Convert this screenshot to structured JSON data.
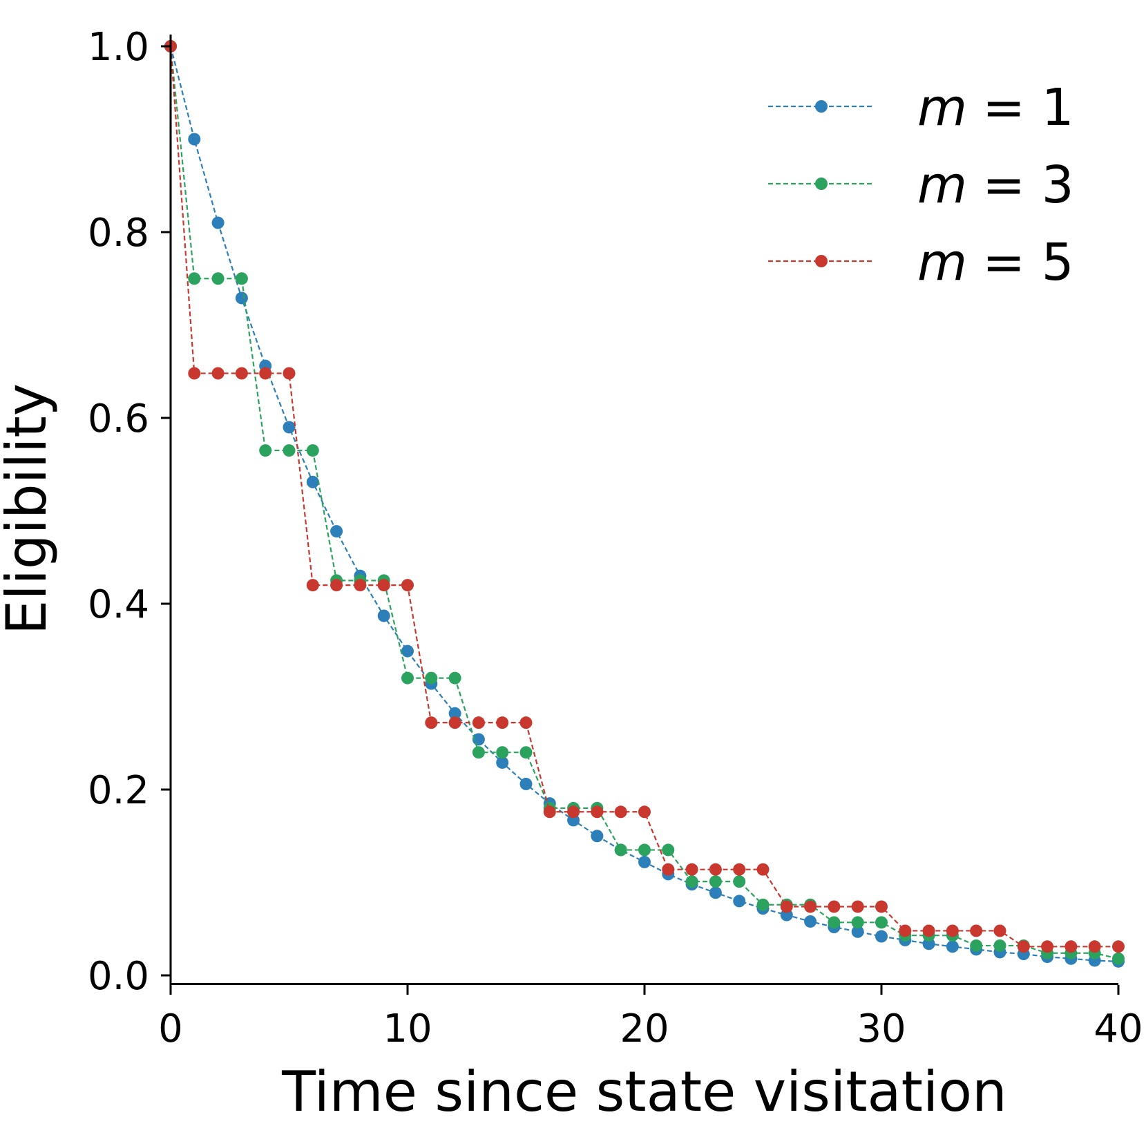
{
  "chart_data": {
    "type": "line",
    "title": "",
    "xlabel": "Time since state visitation",
    "ylabel": "Eligibility",
    "xlim": [
      0,
      40
    ],
    "ylim": [
      0,
      1.0
    ],
    "xticks": [
      "0",
      "10",
      "20",
      "30",
      "40"
    ],
    "yticks": [
      "0.0",
      "0.2",
      "0.4",
      "0.6",
      "0.8",
      "1.0"
    ],
    "legend_position": "top-right",
    "x": [
      0,
      1,
      2,
      3,
      4,
      5,
      6,
      7,
      8,
      9,
      10,
      11,
      12,
      13,
      14,
      15,
      16,
      17,
      18,
      19,
      20,
      21,
      22,
      23,
      24,
      25,
      26,
      27,
      28,
      29,
      30,
      31,
      32,
      33,
      34,
      35,
      36,
      37,
      38,
      39,
      40
    ],
    "series": [
      {
        "name": "m = 1",
        "var": "m",
        "eq": "= 1",
        "color": "#2c7fb8",
        "line_style": "dashed",
        "values": [
          1.0,
          0.9,
          0.81,
          0.729,
          0.656,
          0.59,
          0.531,
          0.478,
          0.43,
          0.387,
          0.349,
          0.314,
          0.282,
          0.254,
          0.229,
          0.206,
          0.185,
          0.167,
          0.15,
          0.135,
          0.122,
          0.109,
          0.098,
          0.089,
          0.08,
          0.072,
          0.065,
          0.058,
          0.052,
          0.047,
          0.042,
          0.038,
          0.034,
          0.031,
          0.028,
          0.025,
          0.023,
          0.02,
          0.018,
          0.016,
          0.015
        ]
      },
      {
        "name": "m = 3",
        "var": "m",
        "eq": "= 3",
        "color": "#2ca25f",
        "line_style": "dashed",
        "values": [
          1.0,
          0.75,
          0.75,
          0.75,
          0.565,
          0.565,
          0.565,
          0.425,
          0.425,
          0.425,
          0.32,
          0.32,
          0.32,
          0.24,
          0.24,
          0.24,
          0.18,
          0.18,
          0.18,
          0.135,
          0.135,
          0.135,
          0.101,
          0.101,
          0.101,
          0.076,
          0.076,
          0.076,
          0.057,
          0.057,
          0.057,
          0.043,
          0.043,
          0.043,
          0.032,
          0.032,
          0.032,
          0.024,
          0.024,
          0.024,
          0.018
        ]
      },
      {
        "name": "m = 5",
        "var": "m",
        "eq": "= 5",
        "color": "#c9382f",
        "line_style": "dashed",
        "values": [
          1.0,
          0.648,
          0.648,
          0.648,
          0.648,
          0.648,
          0.42,
          0.42,
          0.42,
          0.42,
          0.42,
          0.272,
          0.272,
          0.272,
          0.272,
          0.272,
          0.176,
          0.176,
          0.176,
          0.176,
          0.176,
          0.114,
          0.114,
          0.114,
          0.114,
          0.114,
          0.074,
          0.074,
          0.074,
          0.074,
          0.074,
          0.048,
          0.048,
          0.048,
          0.048,
          0.048,
          0.031,
          0.031,
          0.031,
          0.031,
          0.031
        ]
      }
    ]
  }
}
